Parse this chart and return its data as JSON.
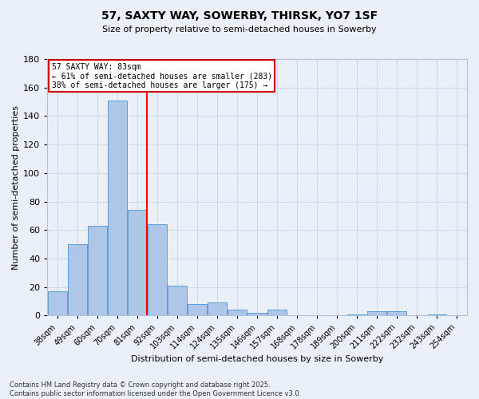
{
  "title1": "57, SAXTY WAY, SOWERBY, THIRSK, YO7 1SF",
  "title2": "Size of property relative to semi-detached houses in Sowerby",
  "xlabel": "Distribution of semi-detached houses by size in Sowerby",
  "ylabel": "Number of semi-detached properties",
  "footer1": "Contains HM Land Registry data © Crown copyright and database right 2025.",
  "footer2": "Contains public sector information licensed under the Open Government Licence v3.0.",
  "bar_labels": [
    "38sqm",
    "49sqm",
    "60sqm",
    "70sqm",
    "81sqm",
    "92sqm",
    "103sqm",
    "114sqm",
    "124sqm",
    "135sqm",
    "146sqm",
    "157sqm",
    "168sqm",
    "178sqm",
    "189sqm",
    "200sqm",
    "211sqm",
    "222sqm",
    "232sqm",
    "243sqm",
    "254sqm"
  ],
  "bar_values": [
    17,
    50,
    63,
    151,
    74,
    64,
    21,
    8,
    9,
    4,
    2,
    4,
    0,
    0,
    0,
    1,
    3,
    3,
    0,
    1,
    0
  ],
  "bar_color": "#aec6e8",
  "bar_edgecolor": "#5a9fd4",
  "property_line_index": 4,
  "property_line_label": "57 SAXTY WAY: 83sqm",
  "pct_smaller": 61,
  "pct_larger": 38,
  "n_smaller": 283,
  "n_larger": 175,
  "annotation_box_color": "#ffffff",
  "annotation_box_edgecolor": "#cc0000",
  "grid_color": "#d0dce8",
  "bg_color": "#eaf0f8",
  "ylim": [
    0,
    180
  ],
  "yticks": [
    0,
    20,
    40,
    60,
    80,
    100,
    120,
    140,
    160,
    180
  ],
  "title1_fontsize": 10,
  "title2_fontsize": 8,
  "xlabel_fontsize": 8,
  "ylabel_fontsize": 8,
  "xtick_fontsize": 7,
  "ytick_fontsize": 8,
  "footer_fontsize": 6
}
